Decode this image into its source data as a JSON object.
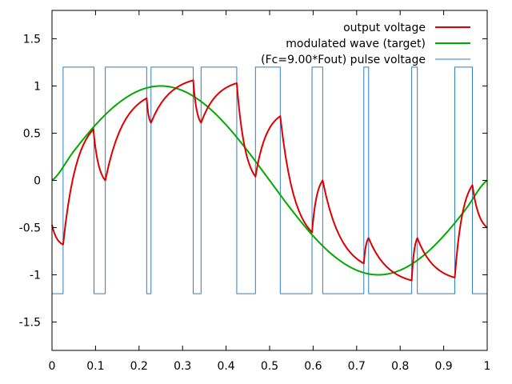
{
  "chart_data": {
    "type": "line",
    "xlim": [
      0,
      1
    ],
    "ylim": [
      -1.8,
      1.8
    ],
    "xticks": [
      "0",
      "0.1",
      "0.2",
      "0.3",
      "0.4",
      "0.5",
      "0.6",
      "0.7",
      "0.8",
      "0.9",
      "1"
    ],
    "yticks": [
      "1.5",
      "1",
      "0.5",
      "0",
      "-0.5",
      "-1",
      "-1.5"
    ],
    "grid": false,
    "legend_position": "top-right",
    "series": [
      {
        "name": "output voltage",
        "color": "#dd0000",
        "x": [
          0,
          0.0255,
          0.095,
          0.1225,
          0.2175,
          0.2275,
          0.3245,
          0.3425,
          0.4245,
          0.4675,
          0.5245,
          0.5975,
          0.622,
          0.7165,
          0.7275,
          0.8265,
          0.8395,
          0.9255,
          0.966,
          1.0
        ],
        "y": [
          -0.47,
          -0.68,
          0.54,
          0.0,
          0.87,
          0.61,
          1.06,
          0.61,
          1.03,
          0.04,
          0.68,
          -0.55,
          0.0,
          -0.88,
          -0.61,
          -1.06,
          -0.61,
          -1.03,
          -0.05,
          -0.5
        ]
      },
      {
        "name": "modulated wave (target)",
        "color": "#00aa00",
        "x": [
          0,
          0.05,
          0.1,
          0.15,
          0.2,
          0.25,
          0.3,
          0.35,
          0.4,
          0.45,
          0.5,
          0.55,
          0.6,
          0.65,
          0.7,
          0.75,
          0.8,
          0.85,
          0.9,
          0.95,
          1.0
        ],
        "y": [
          0,
          0.309,
          0.588,
          0.809,
          0.951,
          1.0,
          0.951,
          0.809,
          0.588,
          0.309,
          0,
          -0.309,
          -0.588,
          -0.809,
          -0.951,
          -1.0,
          -0.951,
          -0.809,
          -0.588,
          -0.309,
          0
        ]
      },
      {
        "name": "(Fc=9.00*Fout) pulse voltage",
        "color": "#2e7fbf",
        "x": [
          0,
          0.0255,
          0.0255,
          0.0965,
          0.0965,
          0.1225,
          0.1225,
          0.2175,
          0.2175,
          0.2275,
          0.2275,
          0.3245,
          0.3245,
          0.3425,
          0.3425,
          0.4245,
          0.4245,
          0.4675,
          0.4675,
          0.5245,
          0.5245,
          0.5975,
          0.5975,
          0.622,
          0.622,
          0.7165,
          0.7165,
          0.7275,
          0.7275,
          0.8265,
          0.8265,
          0.8395,
          0.8395,
          0.9255,
          0.9255,
          0.966,
          0.966,
          1.0
        ],
        "y": [
          -1.2,
          -1.2,
          1.2,
          1.2,
          -1.2,
          -1.2,
          1.2,
          1.2,
          -1.2,
          -1.2,
          1.2,
          1.2,
          -1.2,
          -1.2,
          1.2,
          1.2,
          -1.2,
          -1.2,
          1.2,
          1.2,
          -1.2,
          -1.2,
          1.2,
          1.2,
          -1.2,
          -1.2,
          1.2,
          1.2,
          -1.2,
          -1.2,
          1.2,
          1.2,
          -1.2,
          -1.2,
          1.2,
          1.2,
          -1.2,
          -1.2
        ]
      }
    ]
  }
}
